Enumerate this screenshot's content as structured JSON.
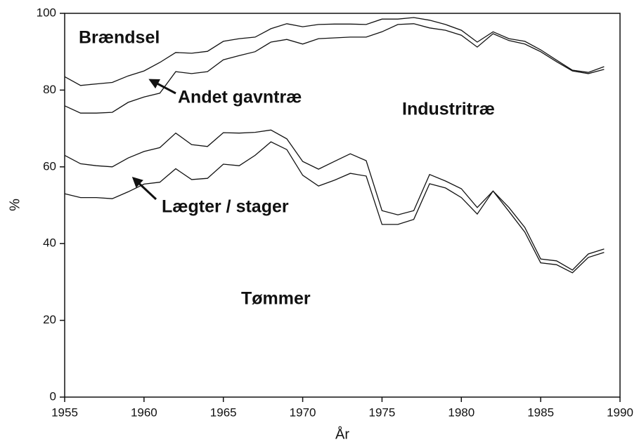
{
  "chart_data": {
    "type": "stacked_line",
    "x": [
      1955,
      1956,
      1957,
      1958,
      1959,
      1960,
      1961,
      1962,
      1963,
      1964,
      1965,
      1966,
      1967,
      1968,
      1969,
      1970,
      1971,
      1972,
      1973,
      1974,
      1975,
      1976,
      1977,
      1978,
      1979,
      1980,
      1981,
      1982,
      1983,
      1984,
      1985,
      1986,
      1987,
      1988,
      1989
    ],
    "series": [
      {
        "name": "Tømmer",
        "color": "#111111",
        "values": [
          53,
          52,
          52,
          51.7,
          53.5,
          55.5,
          56,
          59.5,
          56.7,
          57,
          60.7,
          60.3,
          63,
          66.5,
          64.5,
          57.8,
          55,
          56.5,
          58.3,
          57.6,
          45,
          45,
          46.3,
          55.6,
          54.5,
          52,
          47.7,
          53.7,
          48.4,
          43,
          35,
          34.5,
          32.4,
          36.4,
          37.7
        ]
      },
      {
        "name": "Lægter / stager",
        "color": "#111111",
        "values": [
          10,
          8.8,
          8.3,
          8.3,
          8.8,
          8.5,
          9,
          9.3,
          9.1,
          8.3,
          8.2,
          8.5,
          6,
          3.1,
          2.8,
          3.6,
          4.4,
          4.9,
          5.1,
          4,
          3.6,
          2.5,
          2.3,
          2.4,
          1.8,
          2.3,
          1.7,
          0,
          1,
          1.2,
          1,
          1,
          0.7,
          0.9,
          0.9
        ]
      },
      {
        "name": "Industritræ",
        "color": "#111111",
        "values": [
          12.9,
          13.2,
          13.7,
          14.2,
          14.5,
          14.2,
          14.2,
          16,
          18.5,
          19.5,
          19,
          20.2,
          21,
          22.9,
          25.9,
          30.6,
          34,
          32.2,
          30.4,
          32.2,
          46.6,
          49.6,
          48.7,
          38.2,
          39.3,
          40,
          41.8,
          41,
          43.5,
          47.8,
          54,
          51.9,
          51.9,
          47,
          46.8
        ]
      },
      {
        "name": "Andet gavntræ",
        "color": "#111111",
        "values": [
          7.6,
          7.2,
          7.6,
          7.8,
          6.9,
          6.8,
          8,
          5,
          5.3,
          5.3,
          4.8,
          4.4,
          3.8,
          3.5,
          4.1,
          4.5,
          3.7,
          3.6,
          3.4,
          3.3,
          3.3,
          1.4,
          1.6,
          2,
          1.5,
          1.3,
          1.3,
          0.5,
          0.5,
          0.7,
          0.5,
          0.4,
          0.2,
          0.3,
          0.7
        ]
      }
    ],
    "annotation": "Brændsel",
    "xlabel": "År",
    "ylabel": "%",
    "xlim": [
      1955,
      1990
    ],
    "xticks": [
      1955,
      1960,
      1965,
      1970,
      1975,
      1980,
      1985,
      1990
    ],
    "ylim": [
      0,
      100
    ],
    "yticks": [
      0,
      20,
      40,
      60,
      80,
      100
    ],
    "grid": false
  }
}
